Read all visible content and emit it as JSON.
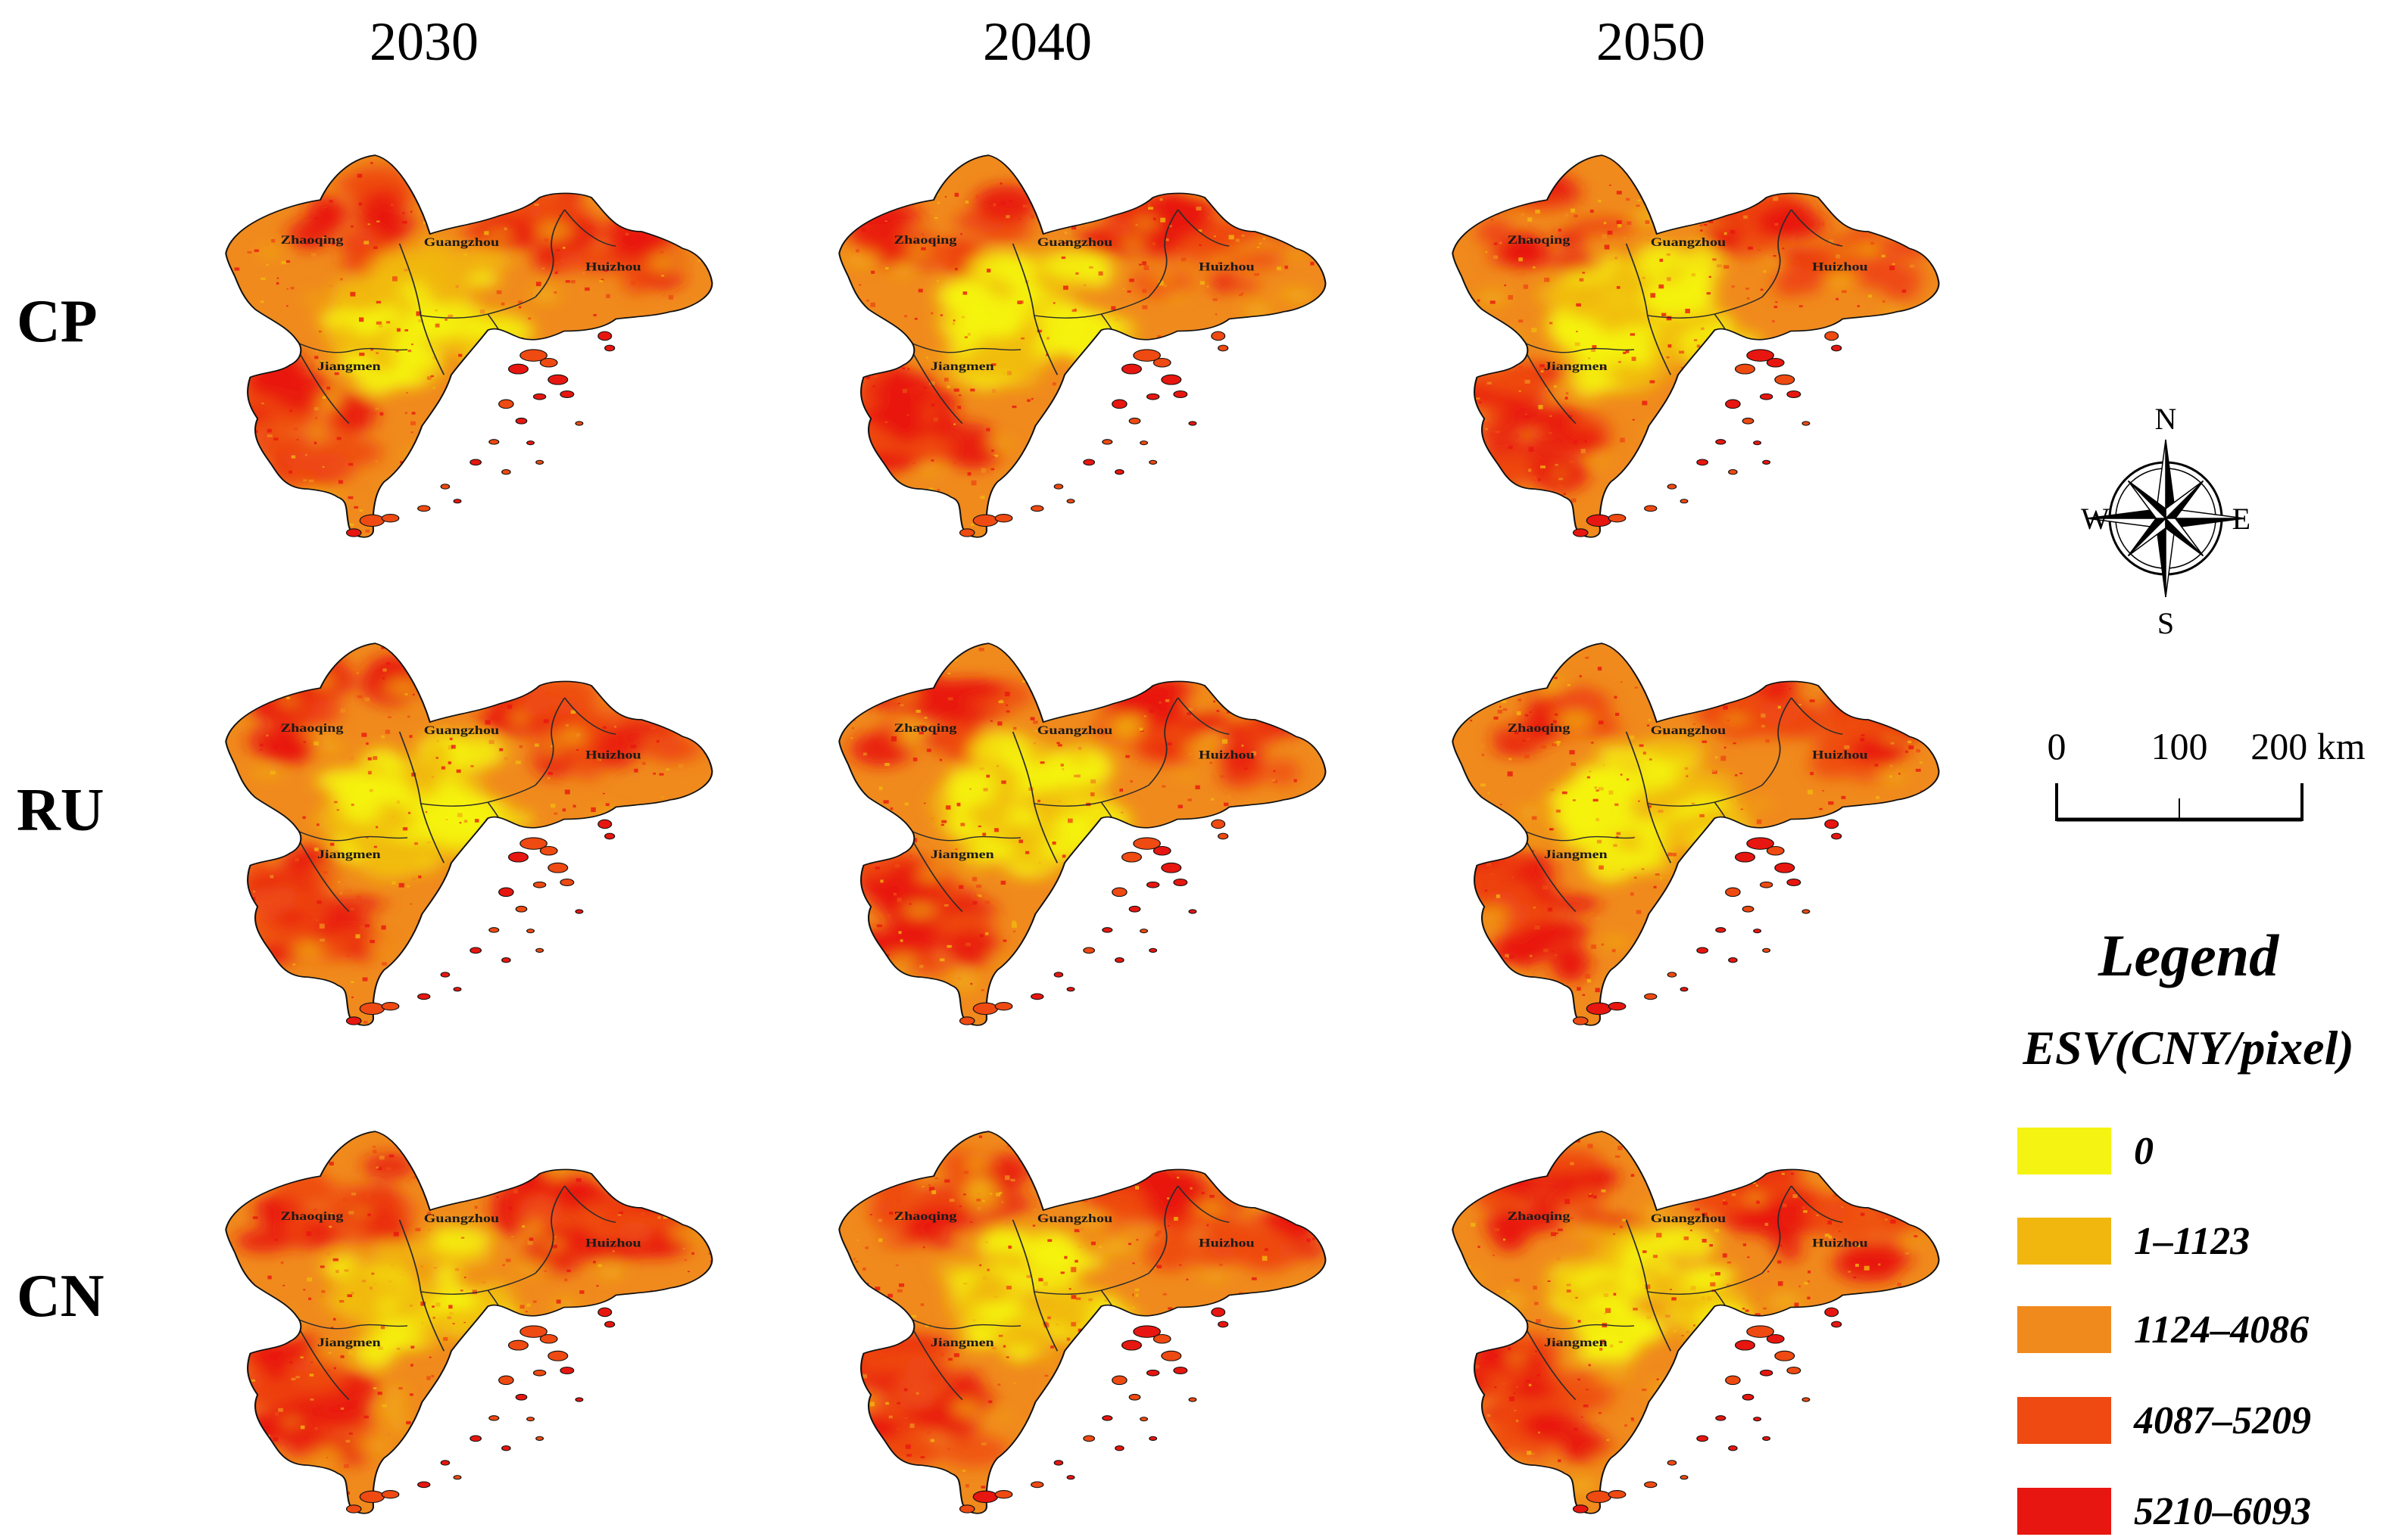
{
  "columns": [
    "2030",
    "2040",
    "2050"
  ],
  "rows": [
    "CP",
    "RU",
    "CN"
  ],
  "cities": [
    "Zhaoqing",
    "Guangzhou",
    "Huizhou",
    "Jiangmen"
  ],
  "compass": {
    "n": "N",
    "s": "S",
    "e": "E",
    "w": "W"
  },
  "scale_bar": {
    "ticks": [
      "0",
      "100",
      "200 km"
    ]
  },
  "legend": {
    "title": "Legend",
    "subtitle": "ESV(CNY/pixel)",
    "classes": [
      {
        "label": "0",
        "color": "#f5f312"
      },
      {
        "label": "1–1123",
        "color": "#f1b70f"
      },
      {
        "label": "1124–4086",
        "color": "#f08a1d"
      },
      {
        "label": "4087–5209",
        "color": "#ee4a12"
      },
      {
        "label": "5210–6093",
        "color": "#e81610"
      }
    ]
  }
}
